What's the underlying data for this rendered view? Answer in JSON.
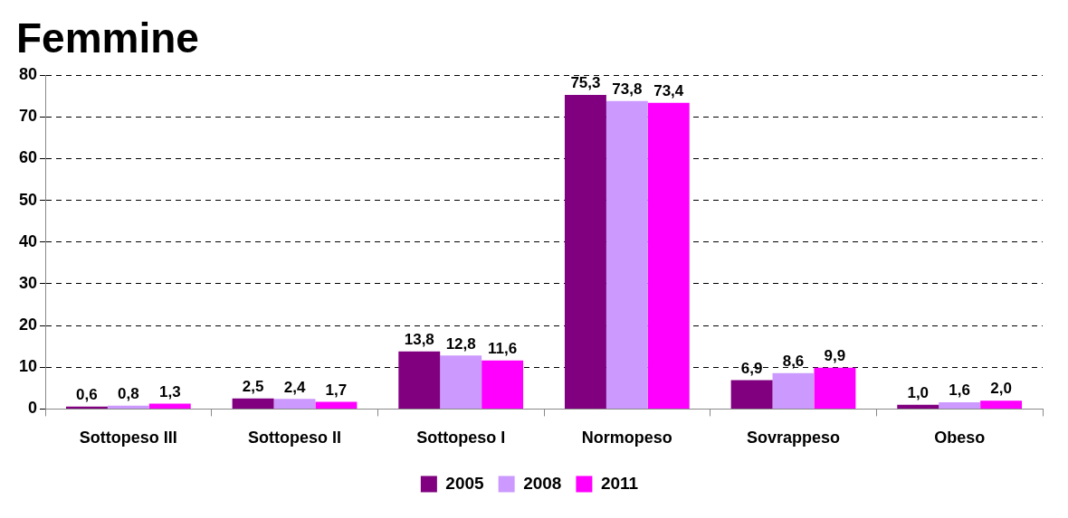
{
  "chart_data": {
    "type": "bar",
    "title": "Femmine",
    "categories": [
      "Sottopeso III",
      "Sottopeso II",
      "Sottopeso I",
      "Normopeso",
      "Sovrappeso",
      "Obeso"
    ],
    "series": [
      {
        "name": "2005",
        "color": "#800080",
        "values": [
          0.6,
          2.5,
          13.8,
          75.3,
          6.9,
          1.0
        ],
        "value_labels": [
          "0,6",
          "2,5",
          "13,8",
          "75,3",
          "6,9",
          "1,0"
        ]
      },
      {
        "name": "2008",
        "color": "#cc99ff",
        "values": [
          0.8,
          2.4,
          12.8,
          73.8,
          8.6,
          1.6
        ],
        "value_labels": [
          "0,8",
          "2,4",
          "12,8",
          "73,8",
          "8,6",
          "1,6"
        ]
      },
      {
        "name": "2011",
        "color": "#ff00ff",
        "values": [
          1.3,
          1.7,
          11.6,
          73.4,
          9.9,
          2.0
        ],
        "value_labels": [
          "1,3",
          "1,7",
          "11,6",
          "73,4",
          "9,9",
          "2,0"
        ]
      }
    ],
    "ylim": [
      0,
      80
    ],
    "yticks": [
      0,
      10,
      20,
      30,
      40,
      50,
      60,
      70,
      80
    ],
    "grid": "y",
    "legend": "bottom"
  }
}
